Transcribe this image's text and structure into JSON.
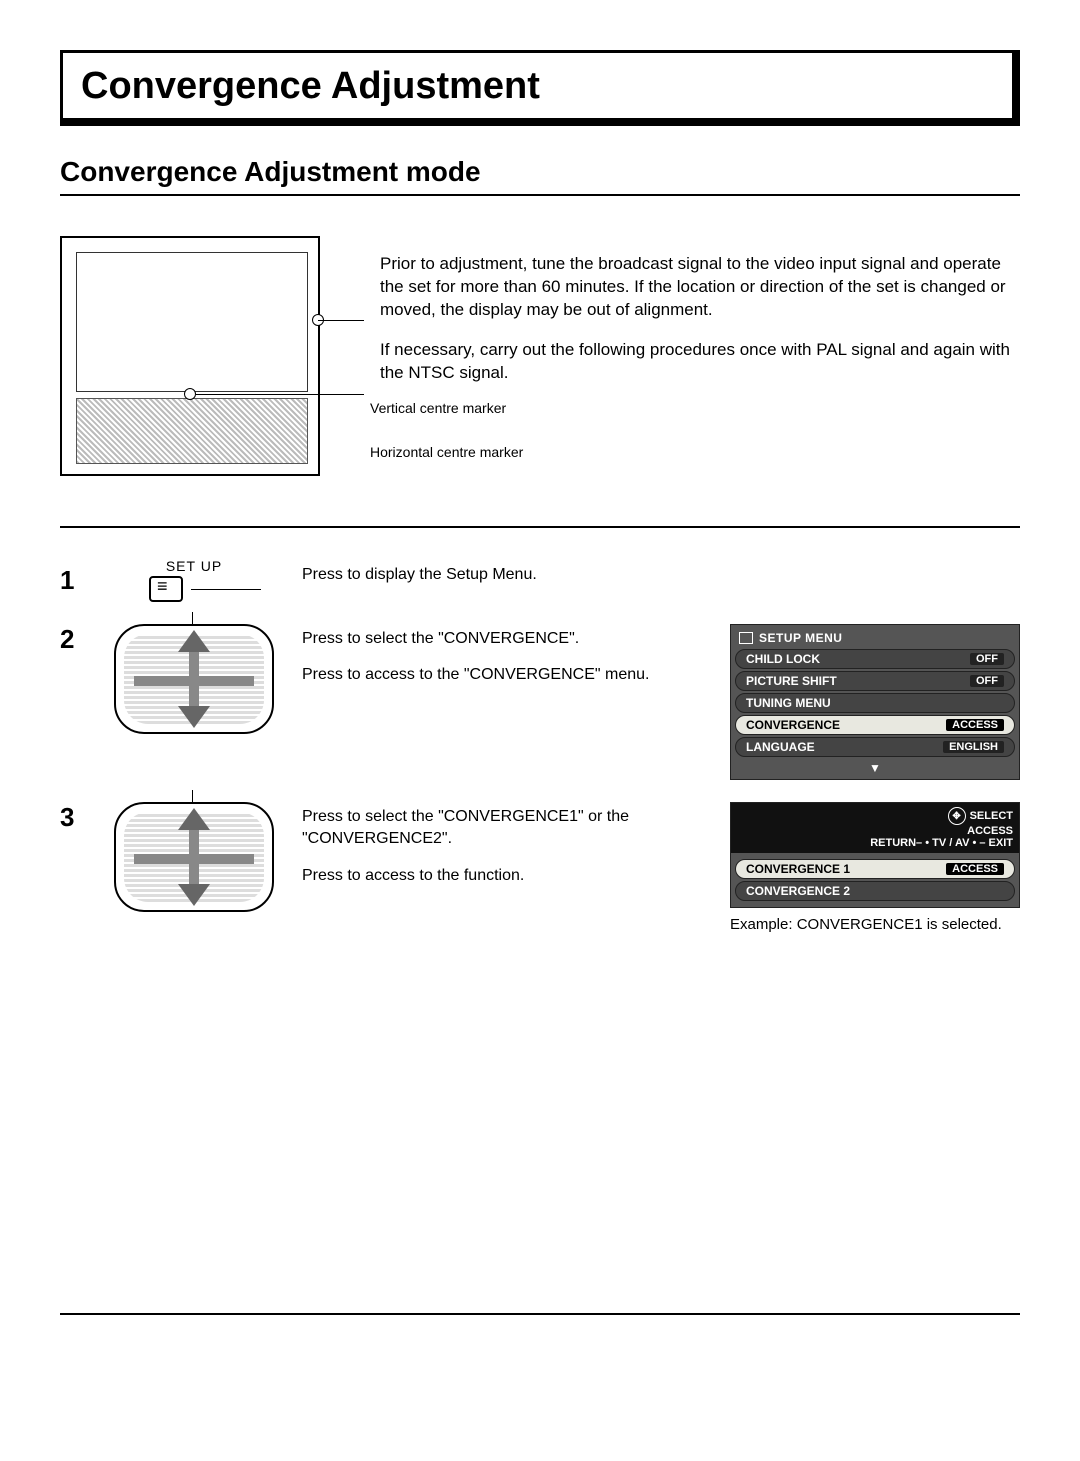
{
  "title": "Convergence Adjustment",
  "subtitle": "Convergence Adjustment mode",
  "intro": {
    "paragraph1": "Prior to adjustment, tune the broadcast signal to the video input signal and operate the set for more than 60 minutes. If the location or direction of the set is changed or moved, the display may be out of alignment.",
    "paragraph2": "If necessary, carry out the following procedures once with PAL signal and again with the NTSC signal.",
    "vertical_marker_label": "Vertical centre marker",
    "horizontal_marker_label": "Horizontal centre marker"
  },
  "steps": {
    "s1": {
      "num": "1",
      "icon_label": "SET UP",
      "text": "Press to display the Setup Menu."
    },
    "s2": {
      "num": "2",
      "text1": "Press to select the \"CONVERGENCE\".",
      "text2": "Press to  access to the \"CONVERGENCE\" menu."
    },
    "s3": {
      "num": "3",
      "text1": "Press to select the  \"CONVERGENCE1\" or the \"CONVERGENCE2\".",
      "text2": "Press to access to the function.",
      "example": "Example: CONVERGENCE1 is selected."
    }
  },
  "osd1": {
    "title": "SETUP MENU",
    "items": [
      {
        "label": "CHILD LOCK",
        "value": "OFF",
        "highlight": false
      },
      {
        "label": "PICTURE SHIFT",
        "value": "OFF",
        "highlight": false
      },
      {
        "label": "TUNING MENU",
        "value": "",
        "highlight": false
      },
      {
        "label": "CONVERGENCE",
        "value": "ACCESS",
        "highlight": true
      },
      {
        "label": "LANGUAGE",
        "value": "ENGLISH",
        "highlight": false
      }
    ],
    "nav": "▼"
  },
  "osd2": {
    "header": {
      "select": "SELECT",
      "access": "ACCESS",
      "return": "RETURN– • TV / AV • – EXIT"
    },
    "items": [
      {
        "label": "CONVERGENCE 1",
        "value": "ACCESS",
        "highlight": true
      },
      {
        "label": "CONVERGENCE 2",
        "value": "",
        "highlight": false
      }
    ]
  },
  "colors": {
    "page_bg": "#ffffff",
    "text": "#000000",
    "osd_bg": "#555555",
    "osd_item_bg": "#444444",
    "osd_highlight_bg": "#e8e8e0",
    "osd_text": "#ffffff",
    "osd_header_bg": "#111111"
  }
}
